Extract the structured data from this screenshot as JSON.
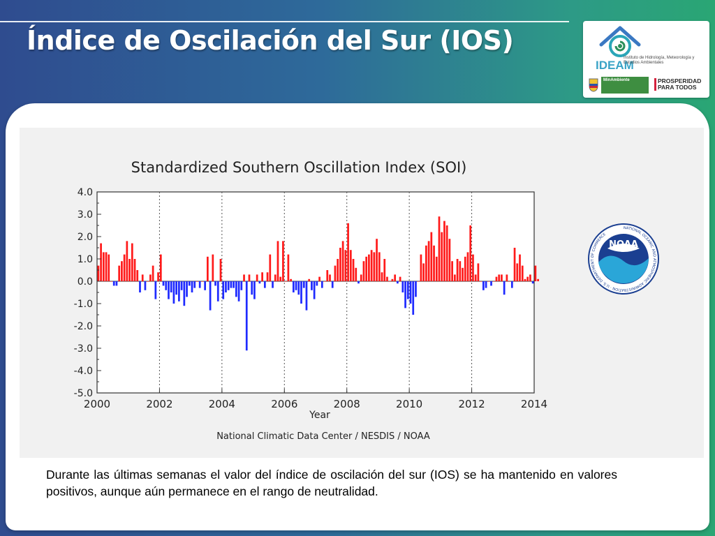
{
  "slide": {
    "title": "Índice de Oscilación del Sur (IOS)",
    "caption": "Durante las últimas semanas el valor del índice de oscilación del sur (IOS) se ha mantenido en valores positivos, aunque aún permanece en el rango de neutralidad."
  },
  "logos": {
    "org_name": "Instituto de Hidrología, Meteorología y Estudios Ambientales",
    "brand": "IDEAM",
    "ministry": "MinAmbiente",
    "prosperity": "PROSPERIDAD PARA TODOS",
    "noaa": "NOAA",
    "noaa_ring": "NATIONAL OCEANIC AND ATMOSPHERIC ADMINISTRATION · U.S. DEPARTMENT OF COMMERCE"
  },
  "colors": {
    "positive": "#ff1a1a",
    "negative": "#1f2bff",
    "accent_blue": "#1b3f91",
    "accent_teal": "#2aa6b8"
  },
  "chart_data": {
    "type": "bar",
    "title": "Standardized Southern Oscillation Index (SOI)",
    "xlabel": "Year",
    "ylabel": "",
    "source": "National Climatic Data Center / NESDIS / NOAA",
    "ylim": [
      -5,
      4
    ],
    "xlim": [
      2000,
      2014
    ],
    "grid": "vertical dotted every 2 years",
    "yticks": [
      "4.0",
      "3.0",
      "2.0",
      "1.0",
      "0.0",
      "-1.0",
      "-2.0",
      "-3.0",
      "-4.0",
      "-5.0"
    ],
    "xticks": [
      "2000",
      "2002",
      "2004",
      "2006",
      "2008",
      "2010",
      "2012",
      "2014"
    ],
    "series": [
      {
        "start": 2000.0,
        "step": "monthly",
        "values": [
          0.7,
          1.7,
          1.3,
          1.3,
          1.2,
          0.0,
          -0.2,
          -0.2,
          0.7,
          0.9,
          1.2,
          1.8,
          1.0,
          1.7,
          1.0,
          0.5,
          -0.5,
          0.3,
          -0.4,
          0.0,
          0.3,
          0.7,
          -0.8,
          0.4,
          1.2,
          -0.2,
          -0.4,
          -0.8,
          -0.5,
          -1.0,
          -0.6,
          -0.9,
          -0.4,
          -1.1,
          -0.7,
          -0.2,
          -0.5,
          -0.3,
          0.0,
          -0.3,
          0.0,
          -0.4,
          1.1,
          -1.3,
          1.2,
          -0.2,
          -0.9,
          1.0,
          -0.8,
          -0.5,
          -0.4,
          -0.3,
          -0.3,
          -0.7,
          -0.9,
          -0.4,
          0.3,
          -3.1,
          0.3,
          -0.6,
          -0.8,
          0.3,
          -0.1,
          0.4,
          -0.3,
          0.4,
          1.2,
          -0.3,
          0.3,
          1.8,
          0.2,
          1.8,
          0.0,
          1.2,
          0.1,
          -0.5,
          -0.4,
          -0.6,
          -1.0,
          -0.3,
          -1.3,
          0.1,
          -0.4,
          -0.8,
          -0.2,
          0.2,
          -0.3,
          0.0,
          0.5,
          0.3,
          -0.3,
          0.7,
          1.0,
          1.5,
          1.8,
          1.4,
          2.6,
          1.4,
          1.0,
          0.6,
          -0.1,
          0.3,
          0.9,
          1.1,
          1.2,
          1.4,
          1.3,
          1.9,
          1.3,
          0.4,
          1.0,
          0.2,
          0.0,
          0.1,
          0.3,
          -0.1,
          0.2,
          -0.5,
          -1.2,
          -0.8,
          -1.0,
          -1.5,
          -0.7,
          0.0,
          1.2,
          0.8,
          1.6,
          1.8,
          2.2,
          1.6,
          1.1,
          2.9,
          2.2,
          2.7,
          2.5,
          1.9,
          0.9,
          0.3,
          1.0,
          0.9,
          0.6,
          1.1,
          1.3,
          2.5,
          1.2,
          0.3,
          0.8,
          0.0,
          -0.4,
          -0.3,
          0.0,
          -0.2,
          0.0,
          0.2,
          0.3,
          0.3,
          -0.6,
          0.3,
          0.0,
          -0.3,
          1.5,
          0.8,
          1.2,
          0.7,
          0.1,
          0.2,
          0.3,
          -0.1,
          0.7,
          0.1
        ]
      }
    ]
  }
}
